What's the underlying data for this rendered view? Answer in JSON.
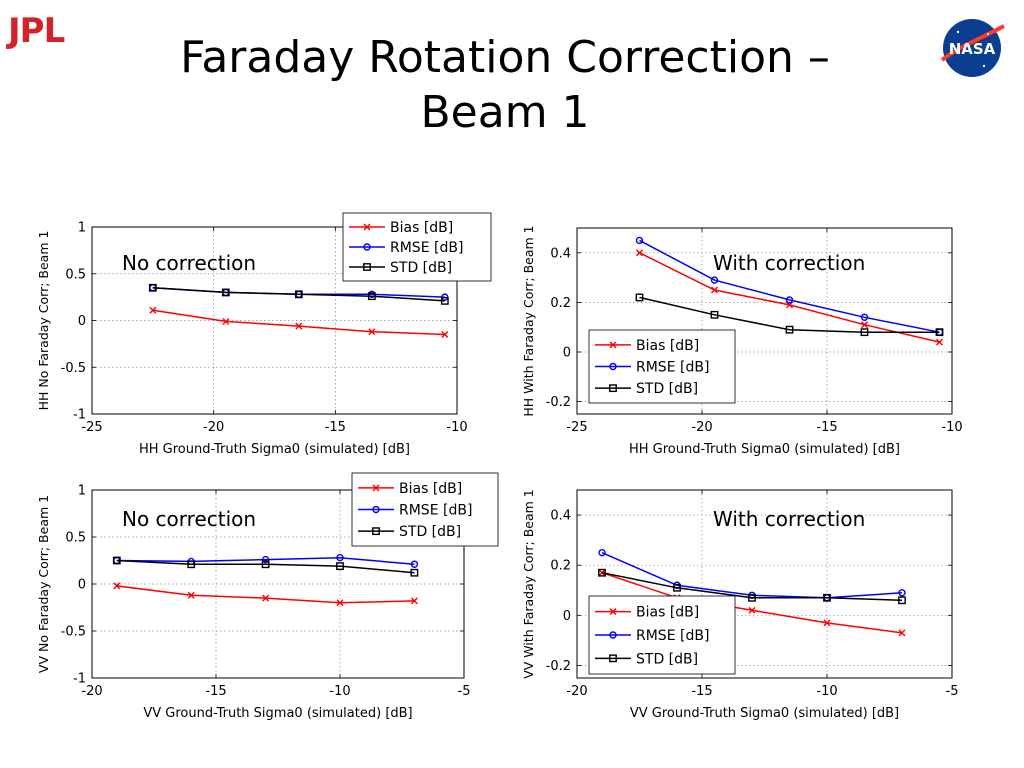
{
  "page": {
    "logo_left": "JPL",
    "logo_right": "NASA",
    "title_line1": "Faraday Rotation Correction –",
    "title_line2": "Beam 1"
  },
  "colors": {
    "bias": "#ff0000",
    "rmse": "#0000ff",
    "std": "#000000",
    "jpl_red": "#d2232a",
    "nasa_blue": "#0b3d91"
  },
  "chart_data": [
    {
      "type": "line",
      "id": "hh-no",
      "annotation": "No correction",
      "xlabel": "HH Ground-Truth Sigma0 (simulated) [dB]",
      "ylabel": "HH No Faraday Corr; Beam 1",
      "xlim": [
        -25,
        -10
      ],
      "ylim": [
        -1,
        1
      ],
      "xticks": [
        -25,
        -20,
        -15,
        -10
      ],
      "yticks": [
        -1,
        -0.5,
        0,
        0.5,
        1
      ],
      "grid": true,
      "legend_position": "top-right",
      "series": [
        {
          "name": "Bias [dB]",
          "marker": "x",
          "x": [
            -22.5,
            -19.5,
            -16.5,
            -13.5,
            -10.5
          ],
          "y": [
            0.11,
            -0.01,
            -0.06,
            -0.12,
            -0.15
          ]
        },
        {
          "name": "RMSE [dB]",
          "marker": "o",
          "x": [
            -22.5,
            -19.5,
            -16.5,
            -13.5,
            -10.5
          ],
          "y": [
            0.35,
            0.3,
            0.28,
            0.28,
            0.25
          ]
        },
        {
          "name": "STD [dB]",
          "marker": "s",
          "x": [
            -22.5,
            -19.5,
            -16.5,
            -13.5,
            -10.5
          ],
          "y": [
            0.35,
            0.3,
            0.28,
            0.26,
            0.21
          ]
        }
      ]
    },
    {
      "type": "line",
      "id": "hh-with",
      "annotation": "With correction",
      "xlabel": "HH Ground-Truth Sigma0 (simulated) [dB]",
      "ylabel": "HH With Faraday Corr; Beam 1",
      "xlim": [
        -25,
        -10
      ],
      "ylim": [
        -0.25,
        0.5
      ],
      "xticks": [
        -25,
        -20,
        -15,
        -10
      ],
      "yticks": [
        -0.2,
        0,
        0.2,
        0.4
      ],
      "grid": true,
      "legend_position": "bottom-left",
      "series": [
        {
          "name": "Bias [dB]",
          "marker": "x",
          "x": [
            -22.5,
            -19.5,
            -16.5,
            -13.5,
            -10.5
          ],
          "y": [
            0.4,
            0.25,
            0.19,
            0.11,
            0.04
          ]
        },
        {
          "name": "RMSE [dB]",
          "marker": "o",
          "x": [
            -22.5,
            -19.5,
            -16.5,
            -13.5,
            -10.5
          ],
          "y": [
            0.45,
            0.29,
            0.21,
            0.14,
            0.08
          ]
        },
        {
          "name": "STD [dB]",
          "marker": "s",
          "x": [
            -22.5,
            -19.5,
            -16.5,
            -13.5,
            -10.5
          ],
          "y": [
            0.22,
            0.15,
            0.09,
            0.08,
            0.08
          ]
        }
      ]
    },
    {
      "type": "line",
      "id": "vv-no",
      "annotation": "No correction",
      "xlabel": "VV Ground-Truth Sigma0 (simulated) [dB]",
      "ylabel": "VV No Faraday Corr; Beam 1",
      "xlim": [
        -20,
        -5
      ],
      "ylim": [
        -1,
        1
      ],
      "xticks": [
        -20,
        -15,
        -10,
        -5
      ],
      "yticks": [
        -1,
        -0.5,
        0,
        0.5,
        1
      ],
      "grid": true,
      "legend_position": "top-right",
      "series": [
        {
          "name": "Bias [dB]",
          "marker": "x",
          "x": [
            -19,
            -16,
            -13,
            -10,
            -7
          ],
          "y": [
            -0.02,
            -0.12,
            -0.15,
            -0.2,
            -0.18
          ]
        },
        {
          "name": "RMSE [dB]",
          "marker": "o",
          "x": [
            -19,
            -16,
            -13,
            -10,
            -7
          ],
          "y": [
            0.25,
            0.24,
            0.26,
            0.28,
            0.21
          ]
        },
        {
          "name": "STD [dB]",
          "marker": "s",
          "x": [
            -19,
            -16,
            -13,
            -10,
            -7
          ],
          "y": [
            0.25,
            0.21,
            0.21,
            0.19,
            0.12
          ]
        }
      ]
    },
    {
      "type": "line",
      "id": "vv-with",
      "annotation": "With correction",
      "xlabel": "VV Ground-Truth Sigma0 (simulated) [dB]",
      "ylabel": "VV With Faraday Corr; Beam 1",
      "xlim": [
        -20,
        -5
      ],
      "ylim": [
        -0.25,
        0.5
      ],
      "xticks": [
        -20,
        -15,
        -10,
        -5
      ],
      "yticks": [
        -0.2,
        0,
        0.2,
        0.4
      ],
      "grid": true,
      "legend_position": "bottom-left",
      "series": [
        {
          "name": "Bias [dB]",
          "marker": "x",
          "x": [
            -19,
            -16,
            -13,
            -10,
            -7
          ],
          "y": [
            0.17,
            0.07,
            0.02,
            -0.03,
            -0.07
          ]
        },
        {
          "name": "RMSE [dB]",
          "marker": "o",
          "x": [
            -19,
            -16,
            -13,
            -10,
            -7
          ],
          "y": [
            0.25,
            0.12,
            0.08,
            0.07,
            0.09
          ]
        },
        {
          "name": "STD [dB]",
          "marker": "s",
          "x": [
            -19,
            -16,
            -13,
            -10,
            -7
          ],
          "y": [
            0.17,
            0.11,
            0.07,
            0.07,
            0.06
          ]
        }
      ]
    }
  ]
}
